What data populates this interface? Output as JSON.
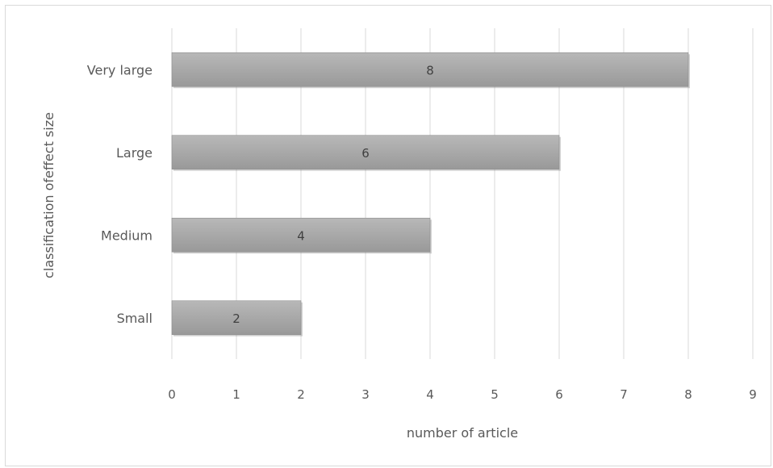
{
  "chart_data": {
    "type": "bar",
    "orientation": "horizontal",
    "categories": [
      "Small",
      "Medium",
      "Large",
      "Very large"
    ],
    "values": [
      2,
      4,
      6,
      8
    ],
    "xlabel": "number of article",
    "ylabel": "classification ofeffect size",
    "xlim": [
      0,
      9
    ],
    "x_ticks": [
      "0",
      "1",
      "2",
      "3",
      "4",
      "5",
      "6",
      "7",
      "8",
      "9"
    ],
    "data_labels": [
      "2",
      "4",
      "6",
      "8"
    ],
    "grid": "vertical",
    "legend": "none",
    "bar_color": "#a6a6a6",
    "gridline_color": "#d9d9d9"
  }
}
